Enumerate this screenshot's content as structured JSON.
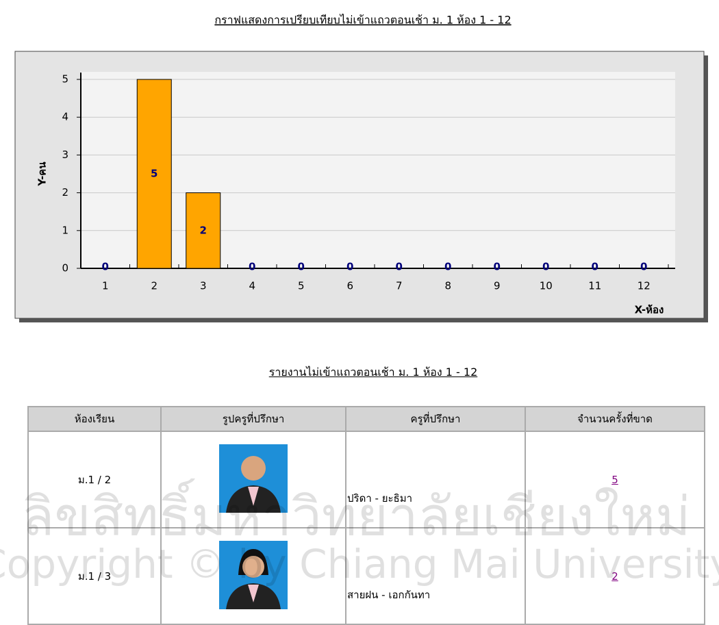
{
  "chart_data": {
    "type": "bar",
    "title": "กราฟแสดงการเปรียบเทียบไม่เข้าแถวตอนเช้า ม. 1 ห้อง 1 - 12",
    "x_label": "X-ห้อง",
    "y_label": "Y-คน",
    "categories": [
      "1",
      "2",
      "3",
      "4",
      "5",
      "6",
      "7",
      "8",
      "9",
      "10",
      "11",
      "12"
    ],
    "values": [
      0,
      5,
      2,
      0,
      0,
      0,
      0,
      0,
      0,
      0,
      0,
      0
    ],
    "color": "#ffa500",
    "ylim": [
      0,
      5
    ],
    "yticks": [
      0,
      1,
      2,
      3,
      4,
      5
    ],
    "grid": true
  },
  "report": {
    "title": "รายงานไม่เข้าแถวตอนเช้า ม. 1 ห้อง 1 - 12",
    "table": {
      "header": [
        "ห้องเรียน",
        "รูปครูที่ปรึกษา",
        "ครูที่ปรึกษา",
        "จำนวนครั้งที่ขาด"
      ],
      "rows": [
        [
          "ม.1 / 2",
          "ปริดา - ยะธิมา",
          5
        ],
        [
          "ม.1 / 3",
          "สายฝน - เอกกันทา",
          2
        ]
      ]
    }
  },
  "watermark": {
    "line1": "ลิขสิทธิ์มหาวิทยาลัยเชียงใหม่",
    "line2": "Copyright © by Chiang Mai University"
  }
}
